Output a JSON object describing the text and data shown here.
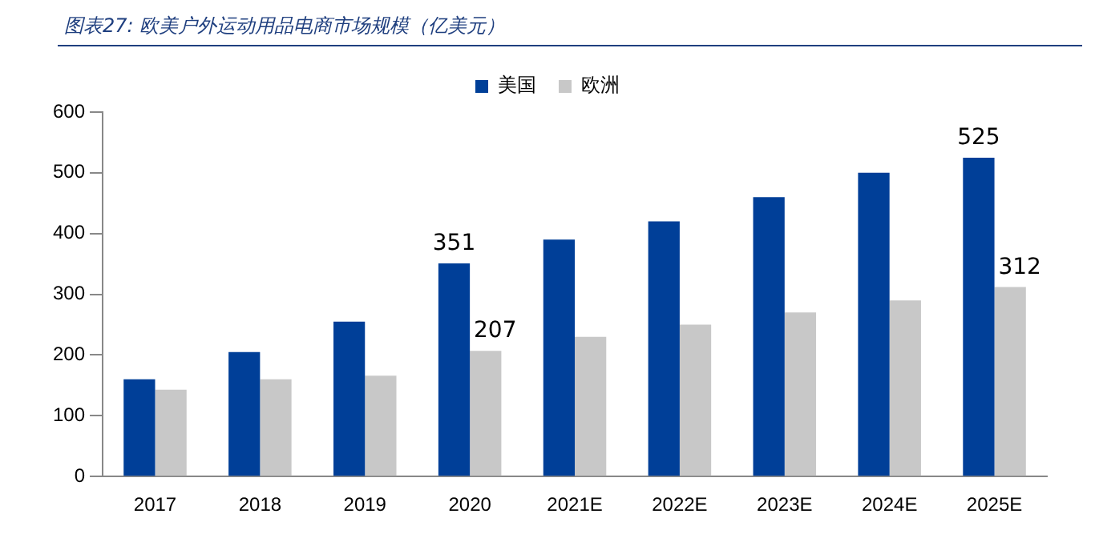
{
  "chart_data": {
    "type": "bar",
    "title": "图表27: 欧美户外运动用品电商市场规模（亿美元）",
    "categories": [
      "2017",
      "2018",
      "2019",
      "2020",
      "2021E",
      "2022E",
      "2023E",
      "2024E",
      "2025E"
    ],
    "series": [
      {
        "name": "美国",
        "color": "#003f98",
        "values": [
          160,
          205,
          255,
          351,
          390,
          420,
          460,
          500,
          525
        ],
        "value_labels": [
          null,
          null,
          null,
          "351",
          null,
          null,
          null,
          null,
          "525"
        ]
      },
      {
        "name": "欧洲",
        "color": "#c8c8c8",
        "values": [
          143,
          160,
          166,
          207,
          230,
          250,
          270,
          290,
          312
        ],
        "value_labels": [
          null,
          null,
          null,
          "207",
          null,
          null,
          null,
          null,
          "312"
        ]
      }
    ],
    "ylim": [
      0,
      600
    ],
    "yticks": [
      0,
      100,
      200,
      300,
      400,
      500,
      600
    ],
    "grid": false,
    "legend": "top"
  }
}
